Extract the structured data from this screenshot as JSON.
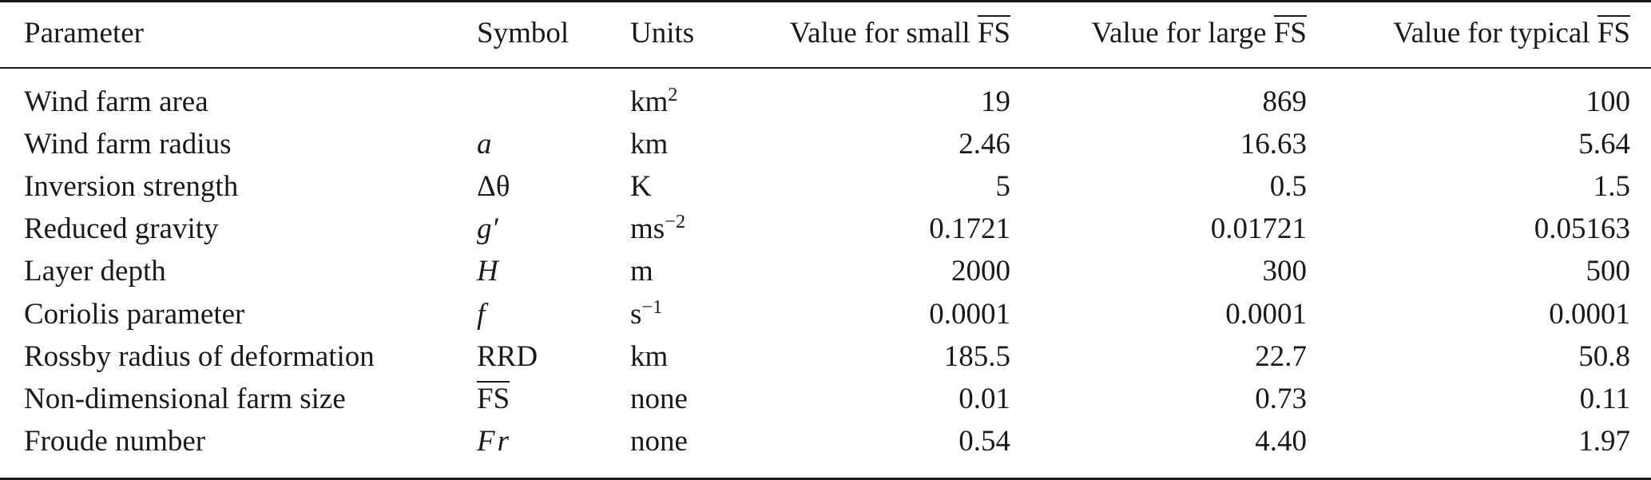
{
  "table": {
    "headers": {
      "parameter": "Parameter",
      "symbol": "Symbol",
      "units": "Units",
      "small_prefix": "Value for small ",
      "large_prefix": "Value for large ",
      "typical_prefix": "Value for typical ",
      "fs_symbol": "FS"
    },
    "rows": [
      {
        "parameter": "Wind farm area",
        "symbol": "",
        "units_base": "km",
        "units_sup": "2",
        "small": "19",
        "large": "869",
        "typical": "100"
      },
      {
        "parameter": "Wind farm radius",
        "symbol": "a",
        "units_base": "km",
        "units_sup": "",
        "small": "2.46",
        "large": "16.63",
        "typical": "5.64"
      },
      {
        "parameter": "Inversion strength",
        "symbol": "Δθ",
        "units_base": "K",
        "units_sup": "",
        "small": "5",
        "large": "0.5",
        "typical": "1.5"
      },
      {
        "parameter": "Reduced gravity",
        "symbol": "g′",
        "units_base": "ms",
        "units_sup": "−2",
        "small": "0.1721",
        "large": "0.01721",
        "typical": "0.05163"
      },
      {
        "parameter": "Layer depth",
        "symbol": "H",
        "units_base": "m",
        "units_sup": "",
        "small": "2000",
        "large": "300",
        "typical": "500"
      },
      {
        "parameter": "Coriolis parameter",
        "symbol": "f",
        "units_base": "s",
        "units_sup": "−1",
        "small": "0.0001",
        "large": "0.0001",
        "typical": "0.0001"
      },
      {
        "parameter": "Rossby radius of deformation",
        "symbol": "RRD",
        "units_base": "km",
        "units_sup": "",
        "small": "185.5",
        "large": "22.7",
        "typical": "50.8"
      },
      {
        "parameter": "Non-dimensional farm size",
        "symbol": "FS",
        "units_base": "none",
        "units_sup": "",
        "small": "0.01",
        "large": "0.73",
        "typical": "0.11"
      },
      {
        "parameter": "Froude number",
        "symbol": "Fr",
        "units_base": "none",
        "units_sup": "",
        "small": "0.54",
        "large": "4.40",
        "typical": "1.97"
      }
    ]
  }
}
